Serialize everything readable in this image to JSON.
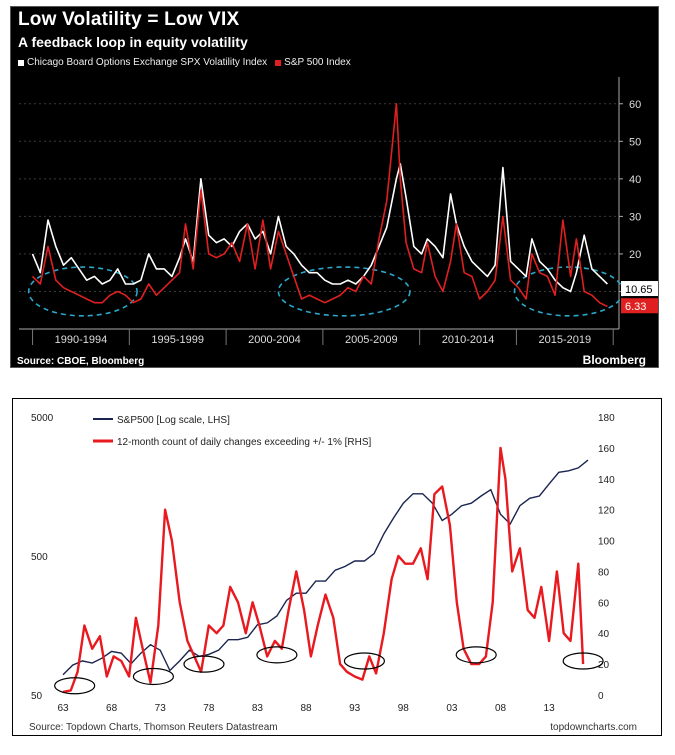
{
  "chart_data": [
    {
      "type": "line",
      "title": "Low Volatility = Low VIX",
      "subtitle": "A feedback loop in equity volatility",
      "source": "Source: CBOE, Bloomberg",
      "brand": "Bloomberg",
      "x_tick_labels": [
        "1990-1994",
        "1995-1999",
        "2000-2004",
        "2005-2009",
        "2010-2014",
        "2015-2019"
      ],
      "ylim": [
        0,
        65
      ],
      "y_ticks": [
        10,
        20,
        30,
        40,
        50,
        60
      ],
      "y_tick_labels": [
        "10",
        "20",
        "30",
        "40",
        "50",
        "60"
      ],
      "value_labels": [
        "10.65",
        "6.33"
      ],
      "grid": true,
      "legend_position": "top-left",
      "series": [
        {
          "name": "Chicago Board Options Exchange SPX Volatility Index",
          "color": "#ffffff",
          "x": [
            1990.0,
            1990.4,
            1990.8,
            1991.2,
            1991.6,
            1992.0,
            1992.4,
            1992.8,
            1993.2,
            1993.6,
            1994.0,
            1994.4,
            1994.8,
            1995.2,
            1995.6,
            1996.0,
            1996.4,
            1996.8,
            1997.2,
            1997.6,
            1997.9,
            1998.3,
            1998.7,
            1999.1,
            1999.5,
            1999.9,
            2000.3,
            2000.7,
            2001.1,
            2001.5,
            2001.9,
            2002.3,
            2002.7,
            2003.1,
            2003.5,
            2003.9,
            2004.3,
            2004.7,
            2005.1,
            2005.5,
            2005.9,
            2006.3,
            2006.7,
            2007.1,
            2007.5,
            2007.9,
            2008.3,
            2008.8,
            2009.0,
            2009.3,
            2009.7,
            2010.1,
            2010.4,
            2010.8,
            2011.2,
            2011.6,
            2011.9,
            2012.3,
            2012.7,
            2013.1,
            2013.5,
            2013.9,
            2014.3,
            2014.7,
            2015.1,
            2015.5,
            2015.8,
            2016.2,
            2016.6,
            2017.0,
            2017.4,
            2017.8,
            2018.1,
            2018.5,
            2018.9,
            2019.3,
            2019.7
          ],
          "values": [
            20,
            15,
            29,
            22,
            17,
            19,
            16,
            13,
            14,
            12,
            13,
            16,
            12,
            12,
            13,
            20,
            16,
            16,
            14,
            19,
            24,
            18,
            40,
            25,
            23,
            24,
            22,
            26,
            28,
            24,
            26,
            20,
            30,
            22,
            20,
            17,
            15,
            15,
            13,
            12,
            12,
            13,
            12,
            14,
            17,
            22,
            27,
            40,
            44,
            35,
            22,
            20,
            24,
            22,
            19,
            36,
            28,
            22,
            18,
            16,
            14,
            17,
            43,
            18,
            16,
            14,
            24,
            18,
            16,
            13,
            11,
            10,
            15,
            25,
            16,
            14,
            12
          ]
        },
        {
          "name": "S&P 500 Index",
          "color": "#e02020",
          "x": [
            1990.0,
            1990.4,
            1990.8,
            1991.2,
            1991.6,
            1992.0,
            1992.4,
            1992.8,
            1993.2,
            1993.6,
            1994.0,
            1994.4,
            1994.8,
            1995.2,
            1995.6,
            1996.0,
            1996.4,
            1996.8,
            1997.2,
            1997.6,
            1997.9,
            1998.3,
            1998.7,
            1999.1,
            1999.5,
            1999.9,
            2000.3,
            2000.7,
            2001.1,
            2001.5,
            2001.9,
            2002.3,
            2002.7,
            2003.1,
            2003.5,
            2003.9,
            2004.3,
            2004.7,
            2005.1,
            2005.5,
            2005.9,
            2006.3,
            2006.7,
            2007.1,
            2007.5,
            2007.9,
            2008.3,
            2008.8,
            2009.0,
            2009.3,
            2009.7,
            2010.1,
            2010.4,
            2010.8,
            2011.2,
            2011.6,
            2011.9,
            2012.3,
            2012.7,
            2013.1,
            2013.5,
            2013.9,
            2014.3,
            2014.7,
            2015.1,
            2015.5,
            2015.8,
            2016.2,
            2016.6,
            2017.0,
            2017.4,
            2017.8,
            2018.1,
            2018.5,
            2018.9,
            2019.3,
            2019.7
          ],
          "values": [
            14,
            12,
            22,
            13,
            11,
            10,
            9,
            8,
            7,
            7,
            9,
            10,
            9,
            7,
            8,
            12,
            9,
            11,
            13,
            15,
            28,
            16,
            37,
            20,
            19,
            20,
            23,
            18,
            28,
            16,
            29,
            16,
            26,
            20,
            14,
            8,
            9,
            8,
            7,
            8,
            9,
            11,
            10,
            14,
            12,
            24,
            34,
            60,
            40,
            23,
            16,
            15,
            23,
            14,
            10,
            18,
            28,
            15,
            14,
            8,
            10,
            13,
            30,
            13,
            11,
            8,
            20,
            15,
            14,
            9,
            29,
            14,
            24,
            10,
            9,
            7,
            6
          ]
        }
      ]
    },
    {
      "type": "line",
      "source": "Source: Topdown Charts, Thomson Reuters Datastream",
      "site": "topdowncharts.com",
      "x_tick_labels": [
        "63",
        "68",
        "73",
        "78",
        "83",
        "88",
        "93",
        "98",
        "03",
        "08",
        "13"
      ],
      "x_ticks": [
        1963,
        1968,
        1973,
        1978,
        1983,
        1988,
        1993,
        1998,
        2003,
        2008,
        2013
      ],
      "xlim": [
        1963,
        2017
      ],
      "y_left": {
        "scale": "log",
        "ylim": [
          50,
          5000
        ],
        "ticks": [
          50,
          500,
          5000
        ],
        "labels": [
          "50",
          "500",
          "5000"
        ]
      },
      "y_right": {
        "ylim": [
          0,
          180
        ],
        "ticks": [
          0,
          20,
          40,
          60,
          80,
          100,
          120,
          140,
          160,
          180
        ],
        "labels": [
          "0",
          "20",
          "40",
          "60",
          "80",
          "100",
          "120",
          "140",
          "160",
          "180"
        ]
      },
      "legend_position": "top-left",
      "series": [
        {
          "name": "S&P500 [Log scale, LHS]",
          "axis": "left",
          "color": "#1a2550",
          "x": [
            1963,
            1964,
            1965,
            1966,
            1967,
            1968,
            1969,
            1970,
            1971,
            1972,
            1973,
            1974,
            1975,
            1976,
            1977,
            1978,
            1979,
            1980,
            1981,
            1982,
            1983,
            1984,
            1985,
            1986,
            1987,
            1988,
            1989,
            1990,
            1991,
            1992,
            1993,
            1994,
            1995,
            1996,
            1997,
            1998,
            1999,
            2000,
            2001,
            2002,
            2003,
            2004,
            2005,
            2006,
            2007,
            2008,
            2009,
            2010,
            2011,
            2012,
            2013,
            2014,
            2015,
            2016,
            2017
          ],
          "values": [
            70,
            82,
            88,
            85,
            92,
            103,
            100,
            84,
            100,
            115,
            105,
            75,
            88,
            105,
            95,
            98,
            105,
            125,
            125,
            130,
            160,
            165,
            185,
            240,
            270,
            270,
            330,
            330,
            395,
            420,
            460,
            460,
            520,
            720,
            940,
            1200,
            1400,
            1400,
            1200,
            900,
            1000,
            1150,
            1200,
            1350,
            1500,
            1000,
            850,
            1150,
            1300,
            1350,
            1650,
            2000,
            2050,
            2150,
            2450
          ]
        },
        {
          "name": "12-month count of daily changes exceeding +/- 1% [RHS]",
          "axis": "right",
          "color": "#e8191f",
          "x": [
            1963,
            1963.8,
            1964.5,
            1965.2,
            1966,
            1966.8,
            1967.5,
            1968.2,
            1969,
            1969.8,
            1970.5,
            1971.2,
            1972,
            1972.8,
            1973.5,
            1974.2,
            1975,
            1975.8,
            1976.5,
            1977.2,
            1978,
            1978.8,
            1979.5,
            1980.2,
            1981,
            1981.8,
            1982.5,
            1983.2,
            1984,
            1984.8,
            1985.5,
            1986.2,
            1987,
            1987.8,
            1988.5,
            1989.2,
            1990,
            1990.8,
            1991.5,
            1992.2,
            1993,
            1993.8,
            1994.5,
            1995.2,
            1996,
            1996.8,
            1997.5,
            1998.2,
            1999,
            1999.8,
            2000.5,
            2001.2,
            2002,
            2002.8,
            2003.5,
            2004.2,
            2005,
            2005.8,
            2006.5,
            2007.2,
            2008,
            2008.5,
            2009.2,
            2010,
            2010.8,
            2011.5,
            2012.2,
            2013,
            2013.8,
            2014.5,
            2015.2,
            2016,
            2016.5
          ],
          "values": [
            2,
            3,
            15,
            45,
            30,
            38,
            12,
            25,
            22,
            12,
            50,
            30,
            8,
            45,
            120,
            100,
            60,
            35,
            25,
            15,
            45,
            40,
            45,
            70,
            60,
            40,
            60,
            45,
            25,
            35,
            30,
            55,
            80,
            55,
            25,
            45,
            65,
            50,
            20,
            15,
            12,
            10,
            25,
            14,
            40,
            75,
            90,
            85,
            85,
            95,
            75,
            130,
            135,
            110,
            60,
            30,
            20,
            20,
            25,
            60,
            160,
            140,
            80,
            95,
            55,
            50,
            70,
            35,
            80,
            40,
            35,
            85,
            20
          ]
        }
      ]
    }
  ]
}
